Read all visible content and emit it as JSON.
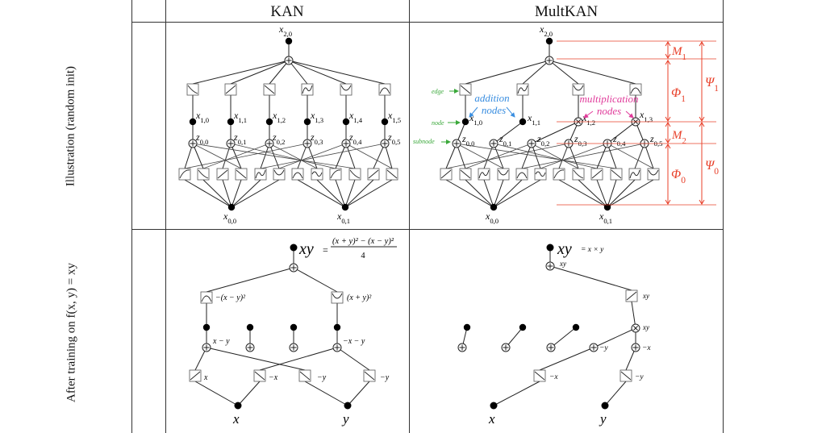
{
  "columns": {
    "kan": "KAN",
    "multkan": "MultKAN"
  },
  "rows": {
    "illustration": "Illustration (random init)",
    "after_training": "After training on  f(x, y) = xy"
  },
  "kan_init": {
    "top": "x2,0",
    "hidden": [
      "x1,0",
      "x1,1",
      "x1,2",
      "x1,3",
      "x1,4",
      "x1,5"
    ],
    "sub": [
      "z0,0",
      "z0,1",
      "z0,2",
      "z0,3",
      "z0,4",
      "z0,5"
    ],
    "inputs": [
      "x0,0",
      "x0,1"
    ]
  },
  "mult_init": {
    "top": "x2,0",
    "hidden": [
      "x1,0",
      "x1,1",
      "x1,2",
      "x1,3"
    ],
    "sub": [
      "z0,0",
      "z0,1",
      "z0,2",
      "z0,3",
      "z0,4",
      "z0,5"
    ],
    "inputs": [
      "x0,0",
      "x0,1"
    ],
    "annotations": {
      "edge": "edge",
      "node": "node",
      "subnode": "subnode",
      "addition": "addition nodes",
      "multiplication": "multiplication nodes"
    },
    "brackets": {
      "m1": "M1",
      "phi1": "Φ1",
      "psi1": "Ψ1",
      "m2": "M2",
      "phi0": "Φ0",
      "psi0": "Ψ0"
    }
  },
  "kan_trained": {
    "output": "xy",
    "formula_num": "(x + y)² − (x − y)²",
    "formula_den": "4",
    "f1": "−(x − y)²",
    "f2": "(x + y)²",
    "n1": "x − y",
    "n2": "−x − y",
    "e": [
      "x",
      "−x",
      "−y",
      "−y"
    ],
    "inputs": [
      "x",
      "y"
    ]
  },
  "mult_trained": {
    "output": "xy",
    "formula": "= x × y",
    "small_xy": "xy",
    "e_top": "xy",
    "mult_xy": "xy",
    "sub1": "−y",
    "sub2": "−x",
    "e1": "−x",
    "e2": "−y",
    "inputs": [
      "x",
      "y"
    ]
  },
  "colors": {
    "red": "#e8402a",
    "blue": "#3a8ee0",
    "pink": "#e03a9a",
    "green": "#3aa83a"
  }
}
